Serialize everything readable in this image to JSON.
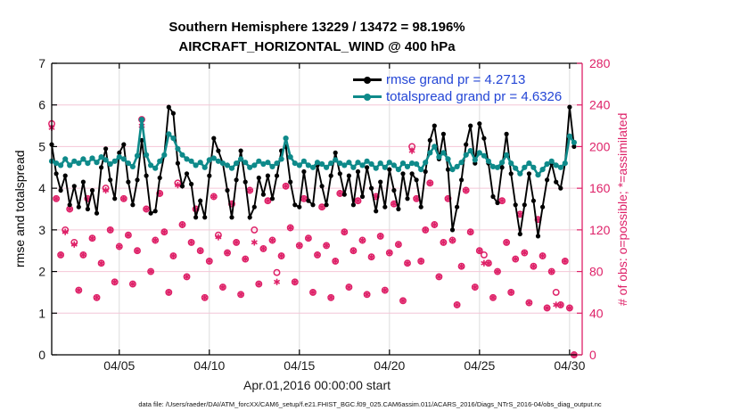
{
  "caption": "data file: /Users/raeder/DAI/ATM_forcXX/CAM6_setup/f.e21.FHIST_BGC.f09_025.CAM6assim.011/ACARS_2016/Diags_NTrS_2016-04/obs_diag_output.nc",
  "chart_data": {
    "type": "line",
    "title": "Southern Hemisphere 13229 / 13472 = 98.196%",
    "subtitle": "AIRCRAFT_HORIZONTAL_WIND @ 400 hPa",
    "xlabel": "Apr.01,2016 00:00:00 start",
    "x_start": 1.25,
    "x_step": 0.25,
    "x_range": [
      1.25,
      30.7
    ],
    "xticks": {
      "values": [
        5,
        10,
        15,
        20,
        25,
        30
      ],
      "labels": [
        "04/05",
        "04/10",
        "04/15",
        "04/20",
        "04/25",
        "04/30"
      ]
    },
    "left_axis": {
      "label": "rmse and totalspread",
      "range": [
        0,
        7
      ],
      "ticks": [
        0,
        1,
        2,
        3,
        4,
        5,
        6,
        7
      ],
      "color": "#000000"
    },
    "right_axis": {
      "label": "# of obs: o=possible; *=assimilated",
      "range": [
        0,
        280
      ],
      "ticks": [
        0,
        40,
        80,
        120,
        160,
        200,
        240,
        280
      ],
      "color": "#DE2168"
    },
    "grid": {
      "vertical_color": "#DCDCDC",
      "horizontal_color": "#F4C6D7"
    },
    "legend_text_color": "#2446D6",
    "legend": [
      {
        "label": "rmse grand pr = 4.2713",
        "color": "#000000"
      },
      {
        "label": "totalspread grand pr = 4.6326",
        "color": "#0E8A8A"
      }
    ],
    "series": [
      {
        "name": "obs_possible",
        "plot": "scatter",
        "marker": "circle",
        "axis": "right",
        "color": "#DE2168",
        "values": [
          222,
          150,
          96,
          120,
          140,
          108,
          62,
          96,
          150,
          112,
          55,
          88,
          160,
          120,
          70,
          104,
          150,
          115,
          68,
          100,
          226,
          140,
          80,
          110,
          155,
          118,
          60,
          95,
          165,
          125,
          75,
          108,
          140,
          100,
          55,
          90,
          152,
          115,
          65,
          98,
          145,
          108,
          58,
          92,
          158,
          120,
          68,
          102,
          148,
          110,
          79,
          95,
          162,
          122,
          70,
          105,
          150,
          112,
          60,
          96,
          142,
          105,
          55,
          90,
          155,
          118,
          65,
          100,
          148,
          110,
          58,
          94,
          152,
          114,
          62,
          98,
          145,
          106,
          52,
          88,
          200,
          150,
          90,
          120,
          165,
          125,
          75,
          108,
          150,
          110,
          48,
          85,
          158,
          118,
          65,
          100,
          96,
          88,
          55,
          80,
          148,
          108,
          60,
          92,
          135,
          98,
          50,
          85,
          130,
          95,
          45,
          80,
          60,
          48,
          90,
          45,
          0
        ]
      },
      {
        "name": "obs_assimilated",
        "plot": "scatter",
        "marker": "asterisk",
        "axis": "right",
        "color": "#DE2168",
        "values": [
          218,
          150,
          96,
          118,
          140,
          106,
          62,
          96,
          150,
          112,
          55,
          88,
          158,
          120,
          70,
          104,
          150,
          115,
          68,
          100,
          220,
          140,
          80,
          110,
          155,
          118,
          60,
          95,
          163,
          125,
          75,
          108,
          140,
          100,
          55,
          90,
          152,
          113,
          65,
          98,
          145,
          108,
          58,
          92,
          158,
          108,
          68,
          102,
          148,
          110,
          70,
          95,
          162,
          122,
          70,
          105,
          150,
          112,
          60,
          96,
          142,
          105,
          55,
          90,
          155,
          118,
          65,
          100,
          148,
          110,
          58,
          94,
          152,
          114,
          62,
          98,
          145,
          106,
          52,
          88,
          196,
          150,
          90,
          120,
          165,
          125,
          75,
          108,
          150,
          110,
          48,
          85,
          158,
          118,
          65,
          100,
          88,
          88,
          55,
          80,
          148,
          108,
          60,
          92,
          135,
          98,
          50,
          85,
          130,
          95,
          45,
          80,
          48,
          48,
          90,
          45,
          0
        ]
      },
      {
        "name": "rmse",
        "plot": "line",
        "marker": "dot",
        "axis": "left",
        "color": "#000000",
        "values": [
          5.05,
          4.35,
          3.95,
          4.3,
          3.6,
          4.05,
          3.55,
          4.15,
          3.5,
          3.95,
          3.4,
          4.5,
          4.95,
          4.2,
          3.75,
          4.85,
          5.05,
          4.15,
          3.6,
          4.2,
          5.15,
          4.3,
          3.4,
          3.45,
          4.25,
          4.8,
          5.95,
          5.8,
          4.6,
          4.05,
          4.35,
          4.1,
          3.3,
          3.7,
          3.3,
          4.3,
          5.2,
          4.9,
          4.6,
          3.95,
          3.3,
          4.2,
          4.9,
          4.15,
          3.3,
          3.55,
          4.25,
          3.85,
          4.3,
          3.75,
          4.3,
          4.9,
          5.0,
          4.15,
          3.6,
          3.55,
          4.4,
          3.7,
          3.6,
          4.55,
          4.05,
          3.6,
          4.3,
          4.85,
          4.35,
          3.85,
          4.3,
          3.6,
          4.4,
          3.8,
          4.5,
          4.0,
          3.45,
          4.15,
          3.55,
          4.45,
          3.95,
          3.5,
          4.35,
          3.75,
          4.35,
          4.2,
          3.55,
          4.4,
          5.15,
          5.5,
          4.7,
          5.3,
          4.45,
          3.0,
          3.55,
          4.2,
          5.05,
          5.5,
          4.6,
          5.55,
          5.2,
          4.6,
          3.8,
          3.65,
          4.5,
          5.3,
          4.35,
          3.6,
          2.9,
          3.6,
          4.35,
          3.7,
          2.85,
          3.55,
          4.2,
          4.6,
          4.15,
          4.0,
          4.6,
          5.95,
          5.0
        ]
      },
      {
        "name": "totalspread",
        "plot": "line",
        "marker": "dot",
        "axis": "left",
        "color": "#0E8A8A",
        "values": [
          4.65,
          4.6,
          4.55,
          4.7,
          4.55,
          4.65,
          4.6,
          4.7,
          4.6,
          4.72,
          4.62,
          4.75,
          4.68,
          4.58,
          4.65,
          4.75,
          4.7,
          4.6,
          4.52,
          4.78,
          5.65,
          4.8,
          4.55,
          4.48,
          4.65,
          4.8,
          5.3,
          5.2,
          4.95,
          4.8,
          4.7,
          4.65,
          4.55,
          4.62,
          4.5,
          4.68,
          4.72,
          4.65,
          4.6,
          4.55,
          4.48,
          4.6,
          4.7,
          4.62,
          4.5,
          4.55,
          4.65,
          4.58,
          4.62,
          4.52,
          4.6,
          4.7,
          5.2,
          4.75,
          4.6,
          4.55,
          4.65,
          4.55,
          4.5,
          4.62,
          4.58,
          4.5,
          4.6,
          4.68,
          4.6,
          4.55,
          4.62,
          4.5,
          4.62,
          4.55,
          4.65,
          4.58,
          4.48,
          4.6,
          4.5,
          4.62,
          4.55,
          4.45,
          4.6,
          4.52,
          4.6,
          4.58,
          4.45,
          4.62,
          4.85,
          5.0,
          4.75,
          4.85,
          4.7,
          4.45,
          4.52,
          4.62,
          4.8,
          4.9,
          4.68,
          4.85,
          4.78,
          4.65,
          4.52,
          4.5,
          4.62,
          4.8,
          4.6,
          4.48,
          4.35,
          4.5,
          4.6,
          4.5,
          4.32,
          4.45,
          4.58,
          4.65,
          4.55,
          4.5,
          4.6,
          5.25,
          5.1
        ]
      }
    ]
  }
}
